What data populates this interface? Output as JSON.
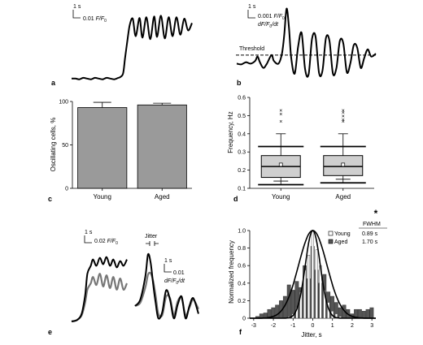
{
  "panels": {
    "a": {
      "label": "a",
      "scale_time": "1 s",
      "scale_amp": "0.01",
      "scale_amp_unit": "F/F",
      "scale_amp_sub": "0",
      "trace": [
        [
          0,
          0.08
        ],
        [
          4,
          0.08
        ],
        [
          8,
          0.07
        ],
        [
          12,
          0.09
        ],
        [
          16,
          0.08
        ],
        [
          20,
          0.07
        ],
        [
          24,
          0.09
        ],
        [
          28,
          0.08
        ],
        [
          32,
          0.07
        ],
        [
          36,
          0.09
        ],
        [
          40,
          0.08
        ],
        [
          44,
          0.07
        ],
        [
          48,
          0.09
        ],
        [
          50,
          0.1
        ],
        [
          53,
          0.15
        ],
        [
          55,
          0.35
        ],
        [
          58,
          0.65
        ],
        [
          60,
          0.82
        ],
        [
          63,
          0.9
        ],
        [
          66,
          0.66
        ],
        [
          70,
          0.91
        ],
        [
          73,
          0.64
        ],
        [
          77,
          0.92
        ],
        [
          81,
          0.62
        ],
        [
          85,
          0.93
        ],
        [
          88,
          0.65
        ],
        [
          92,
          0.94
        ],
        [
          96,
          0.63
        ],
        [
          100,
          0.92
        ],
        [
          104,
          0.66
        ],
        [
          108,
          0.92
        ],
        [
          112,
          0.68
        ],
        [
          116,
          0.9
        ],
        [
          120,
          0.74
        ],
        [
          124,
          0.84
        ]
      ]
    },
    "b": {
      "label": "b",
      "scale_time": "1 s",
      "scale_amp": "0.001",
      "scale_amp_unit": "F/F",
      "scale_amp_sub": "0",
      "scale_deriv": "dF/F",
      "scale_deriv_sub": "0",
      "scale_deriv_tail": "/dt",
      "threshold_label": "Threshold",
      "trace": [
        [
          0,
          0.2
        ],
        [
          4,
          0.19
        ],
        [
          8,
          0.22
        ],
        [
          12,
          0.2
        ],
        [
          16,
          0.24
        ],
        [
          18,
          0.3
        ],
        [
          20,
          0.22
        ],
        [
          23,
          0.14
        ],
        [
          26,
          0.2
        ],
        [
          30,
          0.32
        ],
        [
          32,
          0.24
        ],
        [
          36,
          0.2
        ],
        [
          39,
          0.34
        ],
        [
          41,
          0.6
        ],
        [
          43,
          0.97
        ],
        [
          45,
          0.72
        ],
        [
          47,
          0.28
        ],
        [
          50,
          0.06
        ],
        [
          53,
          0.44
        ],
        [
          56,
          0.63
        ],
        [
          59,
          0.12
        ],
        [
          62,
          0.05
        ],
        [
          65,
          0.55
        ],
        [
          68,
          0.58
        ],
        [
          71,
          0.07
        ],
        [
          74,
          0.1
        ],
        [
          77,
          0.56
        ],
        [
          80,
          0.52
        ],
        [
          83,
          0.06
        ],
        [
          86,
          0.14
        ],
        [
          89,
          0.52
        ],
        [
          92,
          0.48
        ],
        [
          95,
          0.08
        ],
        [
          98,
          0.2
        ],
        [
          101,
          0.46
        ],
        [
          104,
          0.42
        ],
        [
          107,
          0.14
        ],
        [
          110,
          0.28
        ],
        [
          113,
          0.4
        ],
        [
          116,
          0.3
        ],
        [
          120,
          0.34
        ]
      ],
      "threshold_y": 0.32
    },
    "c": {
      "label": "c",
      "ylabel": "Oscillating cells, %",
      "ylim": [
        0,
        100
      ],
      "yticks": [
        "0",
        "50",
        "100"
      ],
      "categories": [
        "Young",
        "Aged"
      ],
      "values": [
        93,
        96
      ],
      "errors": [
        6,
        2
      ]
    },
    "d": {
      "label": "d",
      "ylabel": "Frequency, Hz",
      "ylim": [
        0.1,
        0.6
      ],
      "yticks": [
        "0.1",
        "0.2",
        "0.3",
        "0.4",
        "0.5",
        "0.6"
      ],
      "categories": [
        "Young",
        "Aged"
      ],
      "boxes": [
        {
          "whisker_low": 0.12,
          "q1": 0.16,
          "median": 0.22,
          "q3": 0.28,
          "whisker_high": 0.33,
          "mean": 0.23,
          "p5": 0.14,
          "p95": 0.4,
          "outliers": [
            0.47,
            0.51,
            0.53
          ]
        },
        {
          "whisker_low": 0.13,
          "q1": 0.17,
          "median": 0.22,
          "q3": 0.28,
          "whisker_high": 0.33,
          "mean": 0.23,
          "p5": 0.15,
          "p95": 0.4,
          "outliers": [
            0.47,
            0.48,
            0.5,
            0.52,
            0.53
          ]
        }
      ]
    },
    "e": {
      "label": "e",
      "scale1_time": "1 s",
      "scale1_amp": "0.02",
      "scale1_unit": "F/F",
      "scale1_sub": "0",
      "jitter_label": "Jitter",
      "scale2_time": "1 s",
      "scale2_amp": "0.01",
      "scale2_deriv": "dF/F",
      "scale2_deriv_sub": "0",
      "scale2_deriv_tail": "/dt",
      "left_black": [
        [
          0,
          0.02
        ],
        [
          5,
          0.04
        ],
        [
          9,
          0.12
        ],
        [
          12,
          0.35
        ],
        [
          14,
          0.62
        ],
        [
          17,
          0.72
        ],
        [
          19,
          0.8
        ],
        [
          22,
          0.72
        ],
        [
          25,
          0.82
        ],
        [
          28,
          0.74
        ],
        [
          31,
          0.83
        ],
        [
          34,
          0.72
        ],
        [
          37,
          0.8
        ],
        [
          40,
          0.7
        ],
        [
          43,
          0.78
        ],
        [
          46,
          0.72
        ],
        [
          49,
          0.8
        ]
      ],
      "left_grey": [
        [
          0,
          0.02
        ],
        [
          5,
          0.04
        ],
        [
          9,
          0.1
        ],
        [
          12,
          0.26
        ],
        [
          14,
          0.42
        ],
        [
          17,
          0.5
        ],
        [
          19,
          0.58
        ],
        [
          22,
          0.48
        ],
        [
          25,
          0.62
        ],
        [
          28,
          0.46
        ],
        [
          31,
          0.6
        ],
        [
          34,
          0.44
        ],
        [
          37,
          0.58
        ],
        [
          40,
          0.42
        ],
        [
          43,
          0.56
        ],
        [
          46,
          0.42
        ],
        [
          49,
          0.5
        ]
      ],
      "right_black": [
        [
          0,
          0.22
        ],
        [
          4,
          0.3
        ],
        [
          8,
          0.6
        ],
        [
          10,
          0.88
        ],
        [
          12,
          0.78
        ],
        [
          14,
          0.5
        ],
        [
          16,
          0.25
        ],
        [
          18,
          0.06
        ],
        [
          21,
          0.14
        ],
        [
          24,
          0.42
        ],
        [
          27,
          0.3
        ],
        [
          30,
          0.06
        ],
        [
          33,
          0.24
        ],
        [
          36,
          0.34
        ],
        [
          39,
          0.06
        ],
        [
          42,
          0.22
        ],
        [
          45,
          0.32
        ],
        [
          49,
          0.12
        ]
      ],
      "right_grey": [
        [
          0,
          0.22
        ],
        [
          4,
          0.26
        ],
        [
          8,
          0.46
        ],
        [
          10,
          0.62
        ],
        [
          12,
          0.64
        ],
        [
          14,
          0.54
        ],
        [
          16,
          0.34
        ],
        [
          18,
          0.12
        ],
        [
          21,
          0.1
        ],
        [
          24,
          0.34
        ],
        [
          27,
          0.32
        ],
        [
          30,
          0.1
        ],
        [
          33,
          0.28
        ],
        [
          36,
          0.32
        ],
        [
          39,
          0.1
        ],
        [
          42,
          0.2
        ],
        [
          45,
          0.3
        ],
        [
          49,
          0.18
        ]
      ]
    },
    "f": {
      "label": "f",
      "ylabel": "Normalized frequency",
      "xlabel": "Jitter, s",
      "ylim": [
        0,
        1.0
      ],
      "xlim": [
        -3.2,
        3.2
      ],
      "yticks": [
        "0",
        "0.2",
        "0.4",
        "0.6",
        "0.8",
        "1.0"
      ],
      "xticks": [
        "-3",
        "-2",
        "-1",
        "0",
        "1",
        "2",
        "3"
      ],
      "legend": [
        {
          "name": "Young",
          "fwhm": "0.89 s"
        },
        {
          "name": "Aged",
          "fwhm": "1.70 s"
        }
      ],
      "fwhm_header": "FWHM",
      "star": "*",
      "bins": [
        -2.8,
        -2.6,
        -2.4,
        -2.2,
        -2.0,
        -1.8,
        -1.6,
        -1.4,
        -1.2,
        -1.0,
        -0.8,
        -0.6,
        -0.4,
        -0.2,
        0.0,
        0.2,
        0.4,
        0.6,
        0.8,
        1.0,
        1.2,
        1.4,
        1.6,
        1.8,
        2.0,
        2.2,
        2.4,
        2.6,
        2.8,
        3.0
      ],
      "young": [
        0,
        0,
        0,
        0,
        0,
        0,
        0,
        0,
        0.02,
        0.05,
        0.12,
        0.3,
        0.55,
        0.72,
        1.0,
        0.78,
        0.6,
        0.32,
        0.18,
        0.08,
        0.05,
        0.02,
        0,
        0,
        0,
        0,
        0,
        0,
        0,
        0
      ],
      "aged": [
        0.02,
        0.05,
        0.06,
        0.1,
        0.12,
        0.15,
        0.2,
        0.25,
        0.38,
        0.32,
        0.42,
        0.35,
        0.6,
        0.45,
        0.82,
        0.55,
        0.4,
        0.5,
        0.3,
        0.25,
        0.18,
        0.12,
        0.15,
        0.1,
        0.05,
        0.1,
        0.1,
        0.08,
        0.1,
        0.12
      ],
      "young_sigma": 0.38,
      "aged_sigma": 0.72
    }
  }
}
